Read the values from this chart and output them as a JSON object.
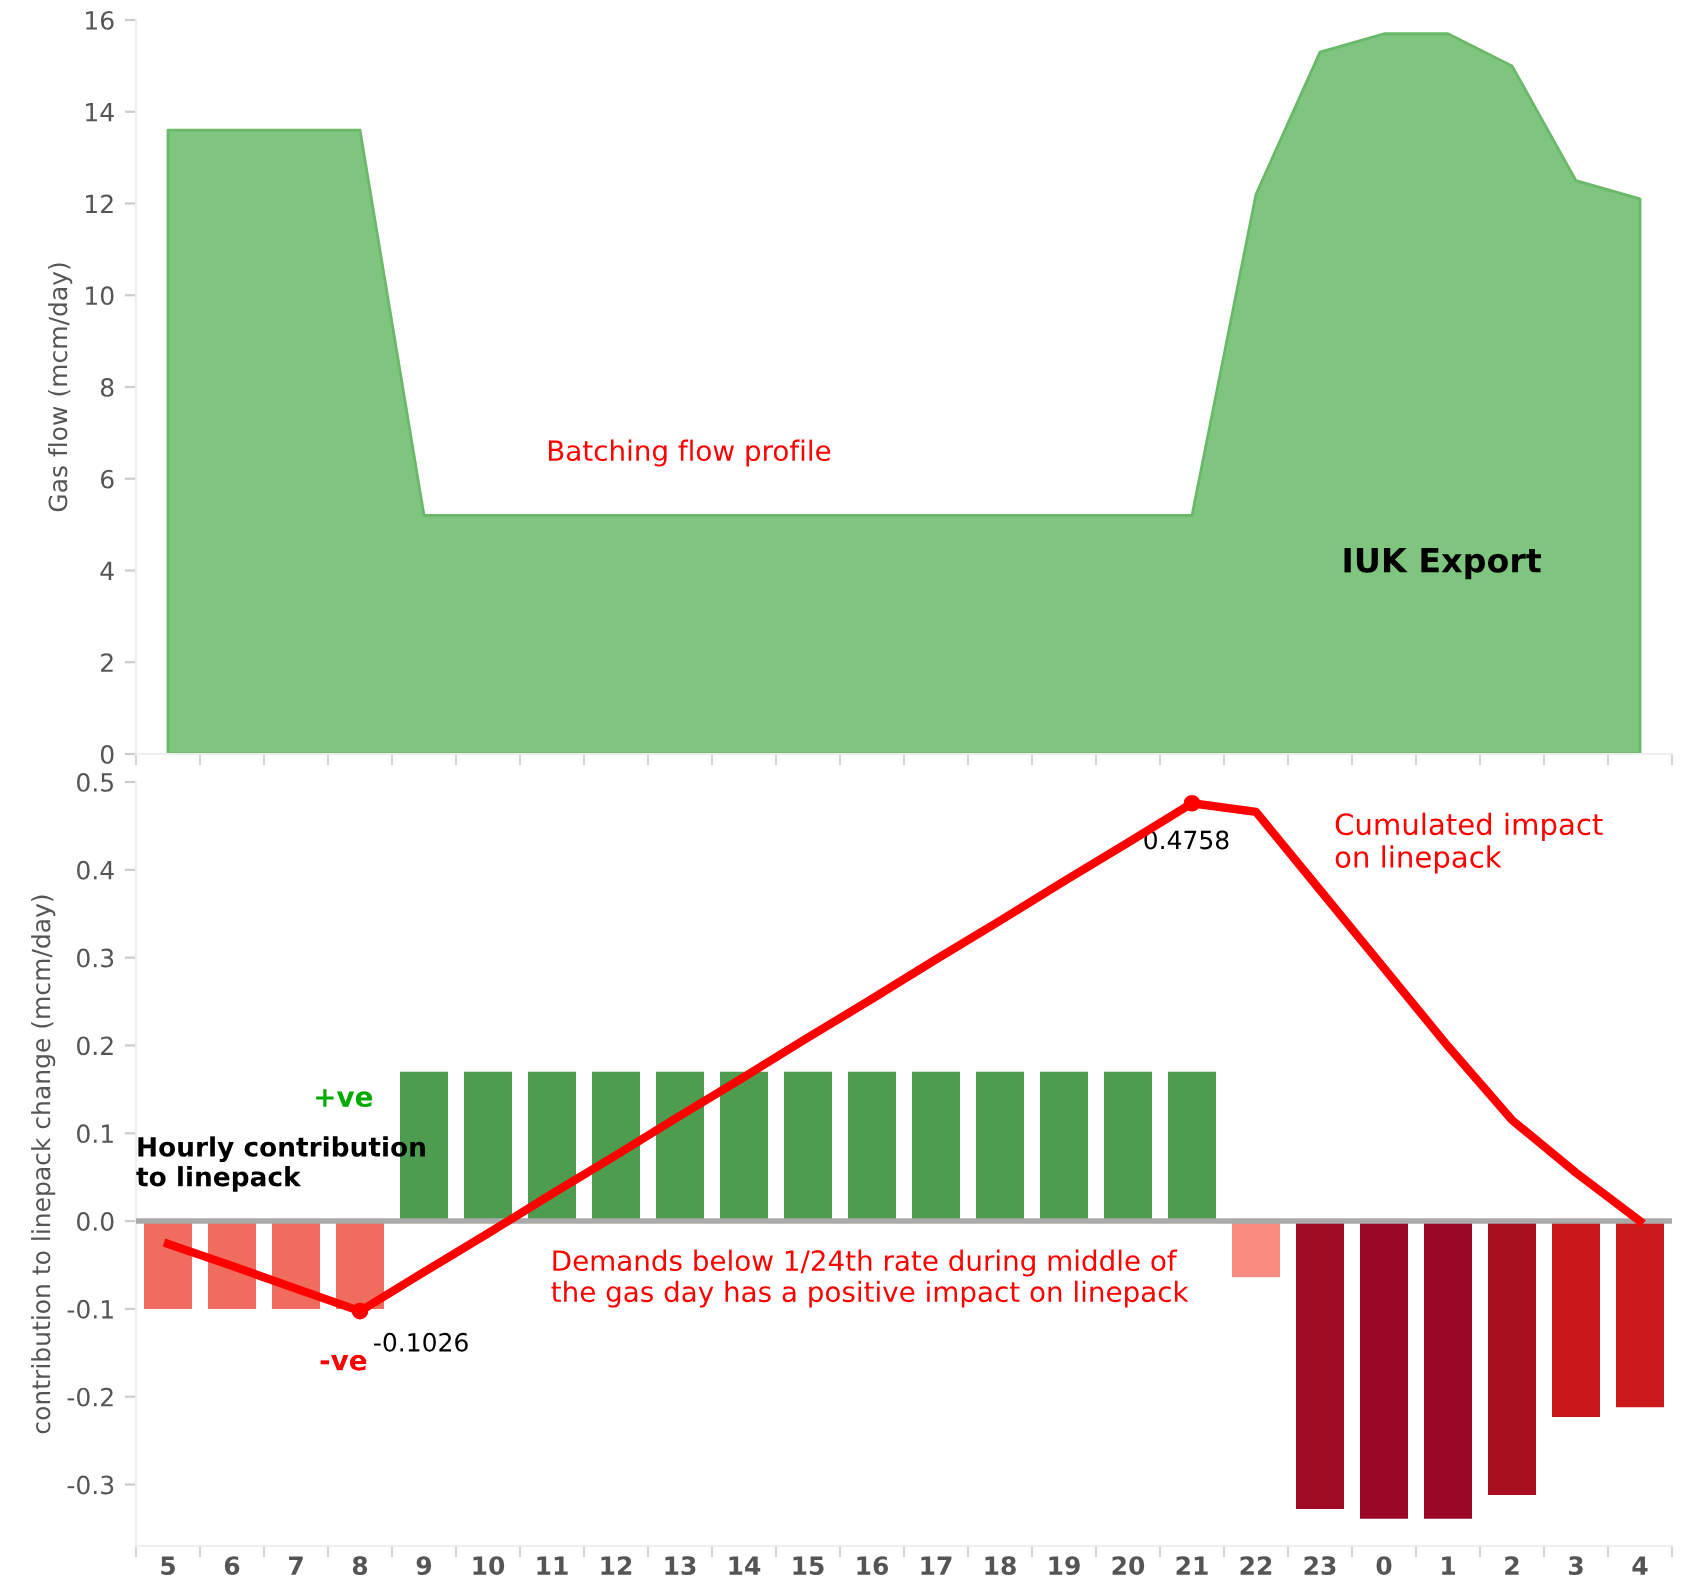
{
  "chart_data": [
    {
      "type": "area",
      "ylabel": "Gas flow (mcm/day)",
      "categories": [
        "5",
        "6",
        "7",
        "8",
        "9",
        "10",
        "11",
        "12",
        "13",
        "14",
        "15",
        "16",
        "17",
        "18",
        "19",
        "20",
        "21",
        "22",
        "23",
        "0",
        "1",
        "2",
        "3",
        "4"
      ],
      "series": [
        {
          "color": "#7fc47f",
          "values": [
            13.6,
            13.6,
            13.6,
            13.6,
            5.2,
            5.2,
            5.2,
            5.2,
            5.2,
            5.2,
            5.2,
            5.2,
            5.2,
            5.2,
            5.2,
            5.2,
            5.2,
            12.2,
            15.3,
            15.7,
            15.7,
            15.0,
            12.5,
            12.1
          ]
        }
      ],
      "ylim": [
        0,
        16
      ],
      "yticks": [
        0,
        2,
        4,
        6,
        8,
        10,
        12,
        14,
        16
      ],
      "tick_labels": "y",
      "grid": false,
      "legend": false,
      "annotations": [
        "Batching flow profile",
        "IUK Export"
      ]
    },
    {
      "type": "bar",
      "ylabel": "contribution to linepack change (mcm/day)",
      "categories": [
        "5",
        "6",
        "7",
        "8",
        "9",
        "10",
        "11",
        "12",
        "13",
        "14",
        "15",
        "16",
        "17",
        "18",
        "19",
        "20",
        "21",
        "22",
        "23",
        "0",
        "1",
        "2",
        "3",
        "4"
      ],
      "series": [
        {
          "type": "bar",
          "colors": [
            "#f06c5e",
            "#f06c5e",
            "#f06c5e",
            "#f06c5e",
            "#4e9c50",
            "#4e9c50",
            "#4e9c50",
            "#4e9c50",
            "#4e9c50",
            "#4e9c50",
            "#4e9c50",
            "#4e9c50",
            "#4e9c50",
            "#4e9c50",
            "#4e9c50",
            "#4e9c50",
            "#4e9c50",
            "#f98b80",
            "#a00c24",
            "#9b0726",
            "#9b0726",
            "#a81020",
            "#c8181c",
            "#cc1a1c"
          ],
          "values": [
            -0.1,
            -0.1,
            -0.1,
            -0.1,
            0.17,
            0.17,
            0.17,
            0.17,
            0.17,
            0.17,
            0.17,
            0.17,
            0.17,
            0.17,
            0.17,
            0.17,
            0.17,
            -0.064,
            -0.328,
            -0.339,
            -0.339,
            -0.312,
            -0.223,
            -0.212
          ]
        },
        {
          "type": "line",
          "color": "#ff0000",
          "values": [
            -0.026,
            -0.051,
            -0.077,
            -0.1026,
            -0.058,
            -0.014,
            0.031,
            0.075,
            0.12,
            0.164,
            0.209,
            0.253,
            0.298,
            0.342,
            0.387,
            0.431,
            0.4758,
            0.466,
            0.377,
            0.288,
            0.199,
            0.115,
            0.055,
            0.0
          ],
          "value_labels": [
            null,
            null,
            null,
            "-0.1026",
            null,
            null,
            null,
            null,
            null,
            null,
            null,
            null,
            null,
            null,
            null,
            null,
            "0.4758",
            null,
            null,
            null,
            null,
            null,
            null,
            null
          ]
        }
      ],
      "ylim": [
        -0.37,
        0.5
      ],
      "yticks": [
        {
          "value": -0.3,
          "label": "-0.3"
        },
        {
          "value": -0.2,
          "label": "-0.2"
        },
        {
          "value": -0.1,
          "label": "-0.1"
        },
        {
          "value": 0,
          "label": "0.0"
        },
        0.1,
        0.2,
        0.3,
        0.4,
        0.5
      ],
      "ref_lines": [
        {
          "axis": "y",
          "value": 0,
          "color": "#aaaaaa"
        }
      ],
      "grid": false,
      "legend": false,
      "marker": "none",
      "annotations": [
        "+ve",
        "Hourly contribution\nto linepack",
        "-ve",
        "Demands below 1/24th rate during middle of\nthe gas day has a positive impact on linepack",
        "Cumulated impact\non linepack"
      ]
    }
  ]
}
